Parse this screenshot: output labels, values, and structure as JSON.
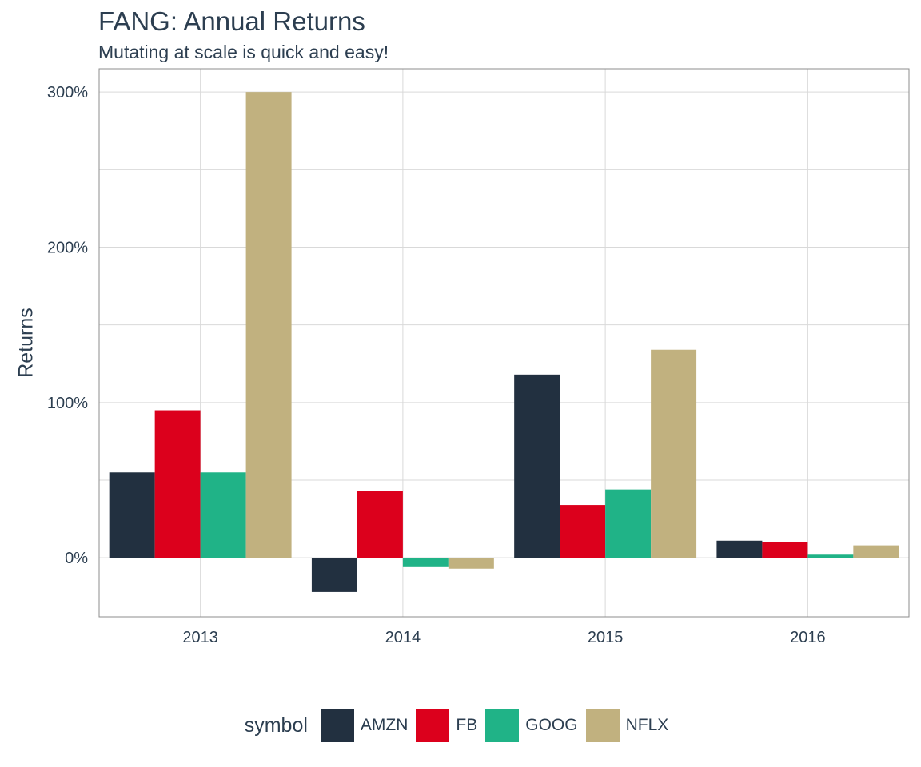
{
  "chart_data": {
    "type": "bar",
    "title": "FANG: Annual Returns",
    "subtitle": "Mutating at scale is quick and easy!",
    "xlabel": "",
    "ylabel": "Returns",
    "categories": [
      "2013",
      "2014",
      "2015",
      "2016"
    ],
    "y_ticks": [
      0,
      1,
      2,
      3
    ],
    "y_tick_labels": [
      "0%",
      "100%",
      "200%",
      "300%"
    ],
    "ylim": [
      -0.38,
      3.15
    ],
    "grid": true,
    "legend": {
      "title": "symbol",
      "placement": "bottom"
    },
    "series": [
      {
        "name": "AMZN",
        "color": "#223040",
        "values": [
          0.55,
          -0.22,
          1.18,
          0.11
        ]
      },
      {
        "name": "FB",
        "color": "#dc001c",
        "values": [
          0.95,
          0.43,
          0.34,
          0.1
        ]
      },
      {
        "name": "GOOG",
        "color": "#20b387",
        "values": [
          0.55,
          -0.06,
          0.44,
          0.02
        ]
      },
      {
        "name": "NFLX",
        "color": "#c1b17f",
        "values": [
          3.0,
          -0.07,
          1.34,
          0.08
        ]
      }
    ]
  }
}
